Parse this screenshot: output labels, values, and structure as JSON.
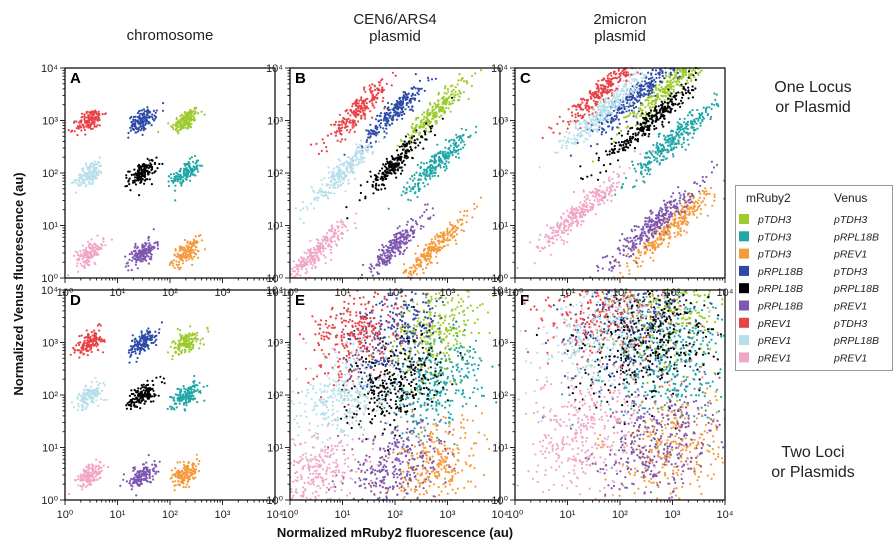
{
  "chart_data": {
    "type": "scatter",
    "axis_scale": "log",
    "xlim": [
      1,
      10000
    ],
    "ylim": [
      1,
      10000
    ],
    "x_ticks": [
      "10⁰",
      "10¹",
      "10²",
      "10³",
      "10⁴"
    ],
    "y_ticks": [
      "10⁰",
      "10¹",
      "10²",
      "10³",
      "10⁴"
    ],
    "xlabel": "Normalized mRuby2 fluorescence (au)",
    "ylabel": "Normalized Venus fluorescence (au)",
    "column_titles": [
      "chromosome",
      "CEN6/ARS4\nplasmid",
      "2micron\nplasmid"
    ],
    "row_titles": [
      "One Locus\nor Plasmid",
      "Two Loci\nor Plasmids"
    ],
    "panel_letters": [
      "A",
      "B",
      "C",
      "D",
      "E",
      "F"
    ],
    "legend": {
      "header_mruby": "mRuby2",
      "header_venus": "Venus",
      "entries": [
        {
          "mruby": "pTDH3",
          "venus": "pTDH3",
          "color": "#9dca2c"
        },
        {
          "mruby": "pTDH3",
          "venus": "pRPL18B",
          "color": "#1fa6a6"
        },
        {
          "mruby": "pTDH3",
          "venus": "pREV1",
          "color": "#f59a3b"
        },
        {
          "mruby": "pRPL18B",
          "venus": "pTDH3",
          "color": "#2d4aa6"
        },
        {
          "mruby": "pRPL18B",
          "venus": "pRPL18B",
          "color": "#000000"
        },
        {
          "mruby": "pRPL18B",
          "venus": "pREV1",
          "color": "#7e57b0"
        },
        {
          "mruby": "pREV1",
          "venus": "pTDH3",
          "color": "#e84248"
        },
        {
          "mruby": "pREV1",
          "venus": "pRPL18B",
          "color": "#b6dfea"
        },
        {
          "mruby": "pREV1",
          "venus": "pREV1",
          "color": "#f2a6c6"
        }
      ]
    },
    "populations": [
      {
        "mruby": "pTDH3",
        "venus": "pTDH3",
        "chromosome_median": [
          200,
          1000
        ],
        "cen_median": [
          600,
          1500
        ],
        "twomicron_median": [
          1000,
          5000
        ]
      },
      {
        "mruby": "pTDH3",
        "venus": "pRPL18B",
        "chromosome_median": [
          200,
          100
        ],
        "cen_median": [
          600,
          150
        ],
        "twomicron_median": [
          1000,
          400
        ]
      },
      {
        "mruby": "pTDH3",
        "venus": "pREV1",
        "chromosome_median": [
          200,
          3
        ],
        "cen_median": [
          600,
          4
        ],
        "twomicron_median": [
          1000,
          10
        ]
      },
      {
        "mruby": "pRPL18B",
        "venus": "pTDH3",
        "chromosome_median": [
          30,
          1000
        ],
        "cen_median": [
          100,
          1500
        ],
        "twomicron_median": [
          200,
          3000
        ]
      },
      {
        "mruby": "pRPL18B",
        "venus": "pRPL18B",
        "chromosome_median": [
          30,
          100
        ],
        "cen_median": [
          100,
          150
        ],
        "twomicron_median": [
          400,
          1000
        ]
      },
      {
        "mruby": "pRPL18B",
        "venus": "pREV1",
        "chromosome_median": [
          30,
          3
        ],
        "cen_median": [
          100,
          4
        ],
        "twomicron_median": [
          400,
          10
        ]
      },
      {
        "mruby": "pREV1",
        "venus": "pTDH3",
        "chromosome_median": [
          3,
          1000
        ],
        "cen_median": [
          20,
          1500
        ],
        "twomicron_median": [
          50,
          4000
        ]
      },
      {
        "mruby": "pREV1",
        "venus": "pRPL18B",
        "chromosome_median": [
          3,
          100
        ],
        "cen_median": [
          10,
          100
        ],
        "twomicron_median": [
          50,
          1500
        ]
      },
      {
        "mruby": "pREV1",
        "venus": "pREV1",
        "chromosome_median": [
          3,
          3
        ],
        "cen_median": [
          3,
          3
        ],
        "twomicron_median": [
          20,
          20
        ]
      }
    ]
  }
}
